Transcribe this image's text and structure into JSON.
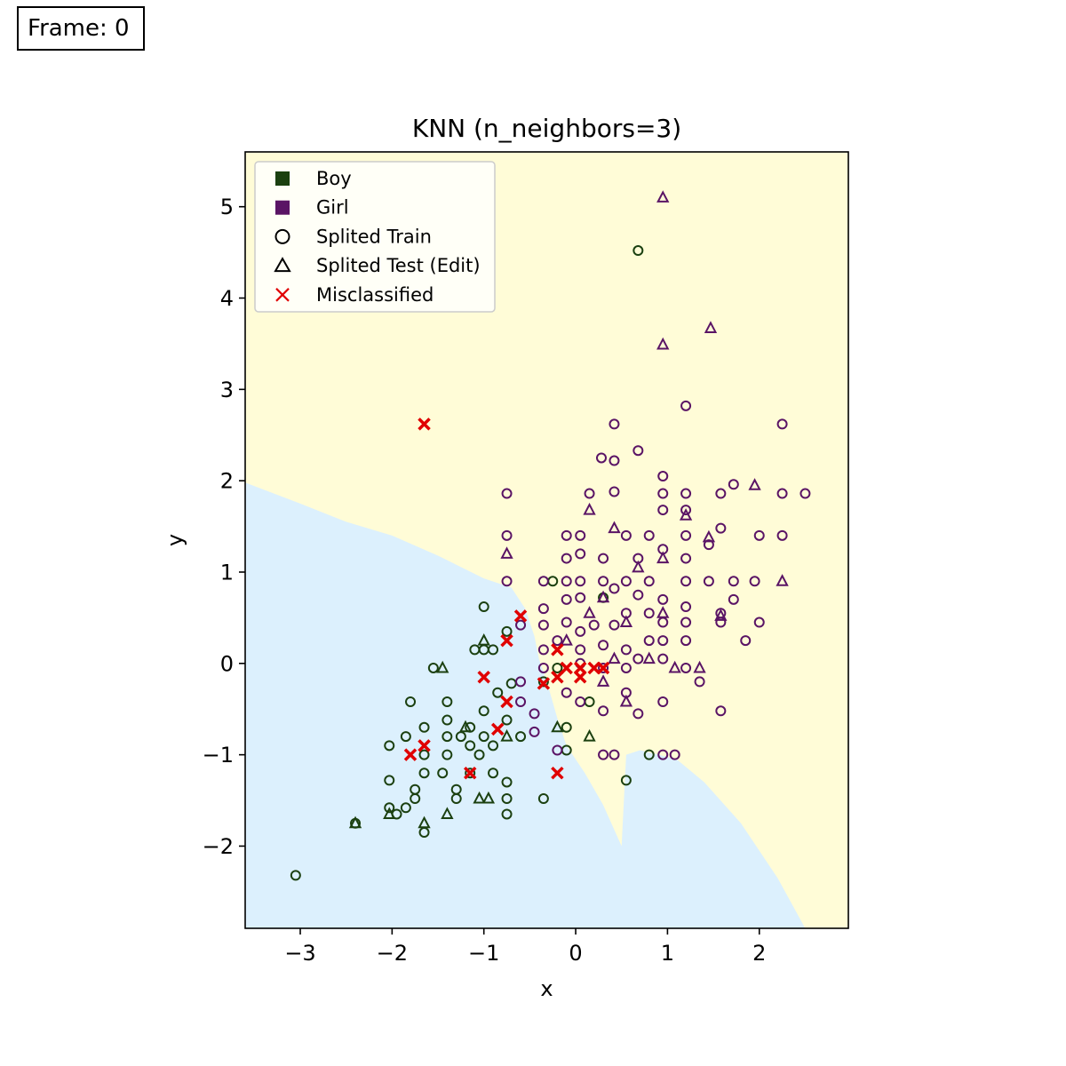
{
  "frame": {
    "label": "Frame:",
    "value": "0"
  },
  "chart_data": {
    "type": "scatter",
    "title": "KNN (n_neighbors=3)",
    "xlabel": "x",
    "ylabel": "y",
    "xlim": [
      -3.6,
      2.97
    ],
    "ylim": [
      -2.9,
      5.6
    ],
    "xticks": [
      -3,
      -2,
      -1,
      0,
      1,
      2
    ],
    "yticks": [
      -2,
      -1,
      0,
      1,
      2,
      3,
      4,
      5
    ],
    "tick_labels_x": [
      "−3",
      "−2",
      "−1",
      "0",
      "1",
      "2"
    ],
    "tick_labels_y": [
      "−2",
      "−1",
      "0",
      "1",
      "2",
      "3",
      "4",
      "5"
    ],
    "grid": false,
    "legend_position": "top-left",
    "legend": [
      {
        "label": "Boy",
        "marker": "square",
        "color": "#1b4010"
      },
      {
        "label": "Girl",
        "marker": "square",
        "color": "#5a1465"
      },
      {
        "label": "Splited Train",
        "marker": "circle",
        "color": "#000000"
      },
      {
        "label": "Splited Test (Edit)",
        "marker": "triangle",
        "color": "#000000"
      },
      {
        "label": "Misclassified",
        "marker": "x",
        "color": "#e00000"
      }
    ],
    "colors": {
      "boy": "#1b4010",
      "girl": "#5a1465",
      "boy_region": "#dcf0fd",
      "girl_region": "#fffcd7",
      "misclassified": "#e00000"
    },
    "boundary": [
      [
        -3.6,
        1.98
      ],
      [
        -3.0,
        1.75
      ],
      [
        -2.5,
        1.55
      ],
      [
        -2.0,
        1.4
      ],
      [
        -1.5,
        1.18
      ],
      [
        -1.0,
        0.93
      ],
      [
        -0.7,
        0.83
      ],
      [
        -0.55,
        0.6
      ],
      [
        -0.45,
        0.3
      ],
      [
        -0.4,
        0.05
      ],
      [
        -0.3,
        -0.25
      ],
      [
        -0.2,
        -0.6
      ],
      [
        -0.1,
        -0.9
      ],
      [
        0.1,
        -1.2
      ],
      [
        0.3,
        -1.55
      ],
      [
        0.5,
        -2.0
      ],
      [
        0.55,
        -1.0
      ],
      [
        0.7,
        -0.95
      ],
      [
        1.1,
        -1.05
      ],
      [
        1.4,
        -1.3
      ],
      [
        1.8,
        -1.75
      ],
      [
        2.2,
        -2.35
      ],
      [
        2.5,
        -2.9
      ]
    ],
    "series": [
      {
        "name": "Boy train",
        "class": "Boy",
        "marker": "circle",
        "points": [
          [
            0.68,
            4.52
          ],
          [
            -3.05,
            -2.32
          ],
          [
            -2.4,
            -1.75
          ],
          [
            -2.03,
            -0.9
          ],
          [
            -2.03,
            -1.28
          ],
          [
            -2.03,
            -1.58
          ],
          [
            -1.95,
            -1.65
          ],
          [
            -1.85,
            -0.8
          ],
          [
            -1.85,
            -1.58
          ],
          [
            -1.8,
            -0.42
          ],
          [
            -1.75,
            -1.38
          ],
          [
            -1.75,
            -1.48
          ],
          [
            -1.65,
            -0.7
          ],
          [
            -1.65,
            -1.0
          ],
          [
            -1.65,
            -1.2
          ],
          [
            -1.65,
            -1.85
          ],
          [
            -1.55,
            -0.05
          ],
          [
            -1.45,
            -1.2
          ],
          [
            -1.4,
            -0.42
          ],
          [
            -1.4,
            -0.62
          ],
          [
            -1.4,
            -0.8
          ],
          [
            -1.4,
            -1.0
          ],
          [
            -1.3,
            -1.38
          ],
          [
            -1.3,
            -1.48
          ],
          [
            -1.25,
            -0.8
          ],
          [
            -1.15,
            -0.7
          ],
          [
            -1.15,
            -0.9
          ],
          [
            -1.15,
            -1.2
          ],
          [
            -1.1,
            0.15
          ],
          [
            -1.05,
            -1.0
          ],
          [
            -1.0,
            0.62
          ],
          [
            -1.0,
            0.15
          ],
          [
            -1.0,
            -0.52
          ],
          [
            -1.0,
            -0.8
          ],
          [
            -0.9,
            0.15
          ],
          [
            -0.9,
            -0.9
          ],
          [
            -0.9,
            -1.2
          ],
          [
            -0.85,
            -0.32
          ],
          [
            -0.75,
            0.35
          ],
          [
            -0.75,
            -0.62
          ],
          [
            -0.75,
            -1.3
          ],
          [
            -0.75,
            -1.48
          ],
          [
            -0.75,
            -1.65
          ],
          [
            -0.7,
            -0.22
          ],
          [
            -0.6,
            -0.8
          ],
          [
            -0.35,
            -0.2
          ],
          [
            -0.35,
            -1.48
          ],
          [
            -0.25,
            0.9
          ],
          [
            -0.2,
            -0.05
          ],
          [
            -0.1,
            -0.7
          ],
          [
            -0.1,
            -0.95
          ],
          [
            0.15,
            -0.42
          ],
          [
            0.55,
            -1.28
          ],
          [
            0.8,
            -1.0
          ],
          [
            0.3,
            0.72
          ]
        ]
      },
      {
        "name": "Boy test",
        "class": "Boy",
        "marker": "triangle",
        "points": [
          [
            -2.4,
            -1.75
          ],
          [
            -2.03,
            -1.65
          ],
          [
            -1.65,
            -1.75
          ],
          [
            -1.45,
            -0.05
          ],
          [
            -1.4,
            -1.65
          ],
          [
            -1.2,
            -0.7
          ],
          [
            -1.05,
            -1.48
          ],
          [
            -0.95,
            -1.48
          ],
          [
            -1.0,
            0.25
          ],
          [
            -0.75,
            -0.8
          ],
          [
            -0.2,
            -0.7
          ],
          [
            0.15,
            -0.8
          ]
        ]
      },
      {
        "name": "Girl train",
        "class": "Girl",
        "marker": "circle",
        "points": [
          [
            0.42,
            2.62
          ],
          [
            1.2,
            2.82
          ],
          [
            2.25,
            2.62
          ],
          [
            0.28,
            2.25
          ],
          [
            0.42,
            2.22
          ],
          [
            0.68,
            2.33
          ],
          [
            0.42,
            1.88
          ],
          [
            0.95,
            2.05
          ],
          [
            0.95,
            1.86
          ],
          [
            1.2,
            1.86
          ],
          [
            1.58,
            1.86
          ],
          [
            1.72,
            1.96
          ],
          [
            2.25,
            1.86
          ],
          [
            2.5,
            1.86
          ],
          [
            -0.75,
            1.86
          ],
          [
            0.15,
            1.86
          ],
          [
            0.95,
            1.68
          ],
          [
            1.2,
            1.68
          ],
          [
            -0.75,
            1.4
          ],
          [
            -0.1,
            1.4
          ],
          [
            0.05,
            1.4
          ],
          [
            0.55,
            1.4
          ],
          [
            0.8,
            1.4
          ],
          [
            1.2,
            1.4
          ],
          [
            1.45,
            1.3
          ],
          [
            1.58,
            1.48
          ],
          [
            2.0,
            1.4
          ],
          [
            2.25,
            1.4
          ],
          [
            -0.1,
            1.15
          ],
          [
            0.05,
            1.2
          ],
          [
            0.3,
            1.15
          ],
          [
            0.68,
            1.15
          ],
          [
            0.95,
            1.25
          ],
          [
            1.2,
            1.15
          ],
          [
            -0.75,
            0.9
          ],
          [
            -0.35,
            0.9
          ],
          [
            -0.1,
            0.9
          ],
          [
            0.05,
            0.9
          ],
          [
            0.3,
            0.9
          ],
          [
            0.55,
            0.9
          ],
          [
            0.8,
            0.9
          ],
          [
            1.2,
            0.9
          ],
          [
            1.45,
            0.9
          ],
          [
            1.72,
            0.9
          ],
          [
            1.95,
            0.9
          ],
          [
            -0.35,
            0.6
          ],
          [
            -0.1,
            0.7
          ],
          [
            0.05,
            0.72
          ],
          [
            0.42,
            0.82
          ],
          [
            0.68,
            0.75
          ],
          [
            0.95,
            0.7
          ],
          [
            1.2,
            0.62
          ],
          [
            1.58,
            0.55
          ],
          [
            1.72,
            0.7
          ],
          [
            -0.6,
            0.42
          ],
          [
            -0.35,
            0.42
          ],
          [
            -0.1,
            0.45
          ],
          [
            0.05,
            0.35
          ],
          [
            0.2,
            0.42
          ],
          [
            0.42,
            0.42
          ],
          [
            0.55,
            0.55
          ],
          [
            0.8,
            0.55
          ],
          [
            0.95,
            0.45
          ],
          [
            1.2,
            0.45
          ],
          [
            1.58,
            0.45
          ],
          [
            2.0,
            0.45
          ],
          [
            -0.35,
            0.15
          ],
          [
            -0.2,
            0.25
          ],
          [
            0.05,
            0.15
          ],
          [
            0.3,
            0.2
          ],
          [
            0.55,
            0.15
          ],
          [
            0.8,
            0.25
          ],
          [
            0.95,
            0.25
          ],
          [
            1.2,
            0.25
          ],
          [
            1.85,
            0.25
          ],
          [
            -0.6,
            -0.2
          ],
          [
            -0.35,
            -0.05
          ],
          [
            0.05,
            0.0
          ],
          [
            0.3,
            -0.05
          ],
          [
            0.55,
            -0.05
          ],
          [
            0.68,
            0.05
          ],
          [
            0.95,
            0.05
          ],
          [
            1.2,
            -0.05
          ],
          [
            1.35,
            -0.2
          ],
          [
            -0.6,
            -0.42
          ],
          [
            -0.45,
            -0.55
          ],
          [
            -0.1,
            -0.32
          ],
          [
            0.05,
            -0.42
          ],
          [
            0.3,
            -0.52
          ],
          [
            0.55,
            -0.32
          ],
          [
            0.68,
            -0.55
          ],
          [
            0.95,
            -0.42
          ],
          [
            1.58,
            -0.52
          ],
          [
            -0.45,
            -0.75
          ],
          [
            -0.2,
            -0.95
          ],
          [
            0.3,
            -1.0
          ],
          [
            0.42,
            -1.0
          ],
          [
            0.95,
            -1.0
          ],
          [
            1.08,
            -1.0
          ]
        ]
      },
      {
        "name": "Girl test",
        "class": "Girl",
        "marker": "triangle",
        "points": [
          [
            0.95,
            5.1
          ],
          [
            1.47,
            3.67
          ],
          [
            0.95,
            3.49
          ],
          [
            1.2,
            1.62
          ],
          [
            1.95,
            1.95
          ],
          [
            0.15,
            1.68
          ],
          [
            0.42,
            1.48
          ],
          [
            1.45,
            1.38
          ],
          [
            -0.75,
            1.2
          ],
          [
            0.95,
            1.15
          ],
          [
            0.68,
            1.05
          ],
          [
            0.3,
            0.72
          ],
          [
            0.55,
            0.45
          ],
          [
            0.95,
            0.55
          ],
          [
            1.58,
            0.52
          ],
          [
            0.15,
            0.55
          ],
          [
            -0.1,
            0.25
          ],
          [
            0.42,
            0.05
          ],
          [
            0.8,
            0.05
          ],
          [
            1.08,
            -0.05
          ],
          [
            1.35,
            -0.05
          ],
          [
            0.3,
            -0.2
          ],
          [
            0.55,
            -0.42
          ],
          [
            2.25,
            0.9
          ]
        ]
      },
      {
        "name": "Misclassified",
        "class": "Error",
        "marker": "x",
        "points": [
          [
            -1.65,
            2.62
          ],
          [
            -0.6,
            0.52
          ],
          [
            -0.75,
            0.25
          ],
          [
            -0.2,
            0.15
          ],
          [
            -1.0,
            -0.15
          ],
          [
            -0.35,
            -0.22
          ],
          [
            -0.1,
            -0.05
          ],
          [
            0.05,
            -0.05
          ],
          [
            0.2,
            -0.05
          ],
          [
            0.3,
            -0.05
          ],
          [
            -0.2,
            -0.15
          ],
          [
            0.05,
            -0.15
          ],
          [
            -0.75,
            -0.42
          ],
          [
            -0.85,
            -0.72
          ],
          [
            -1.65,
            -0.9
          ],
          [
            -1.8,
            -1.0
          ],
          [
            -1.15,
            -1.2
          ],
          [
            -0.2,
            -1.2
          ]
        ]
      }
    ]
  }
}
